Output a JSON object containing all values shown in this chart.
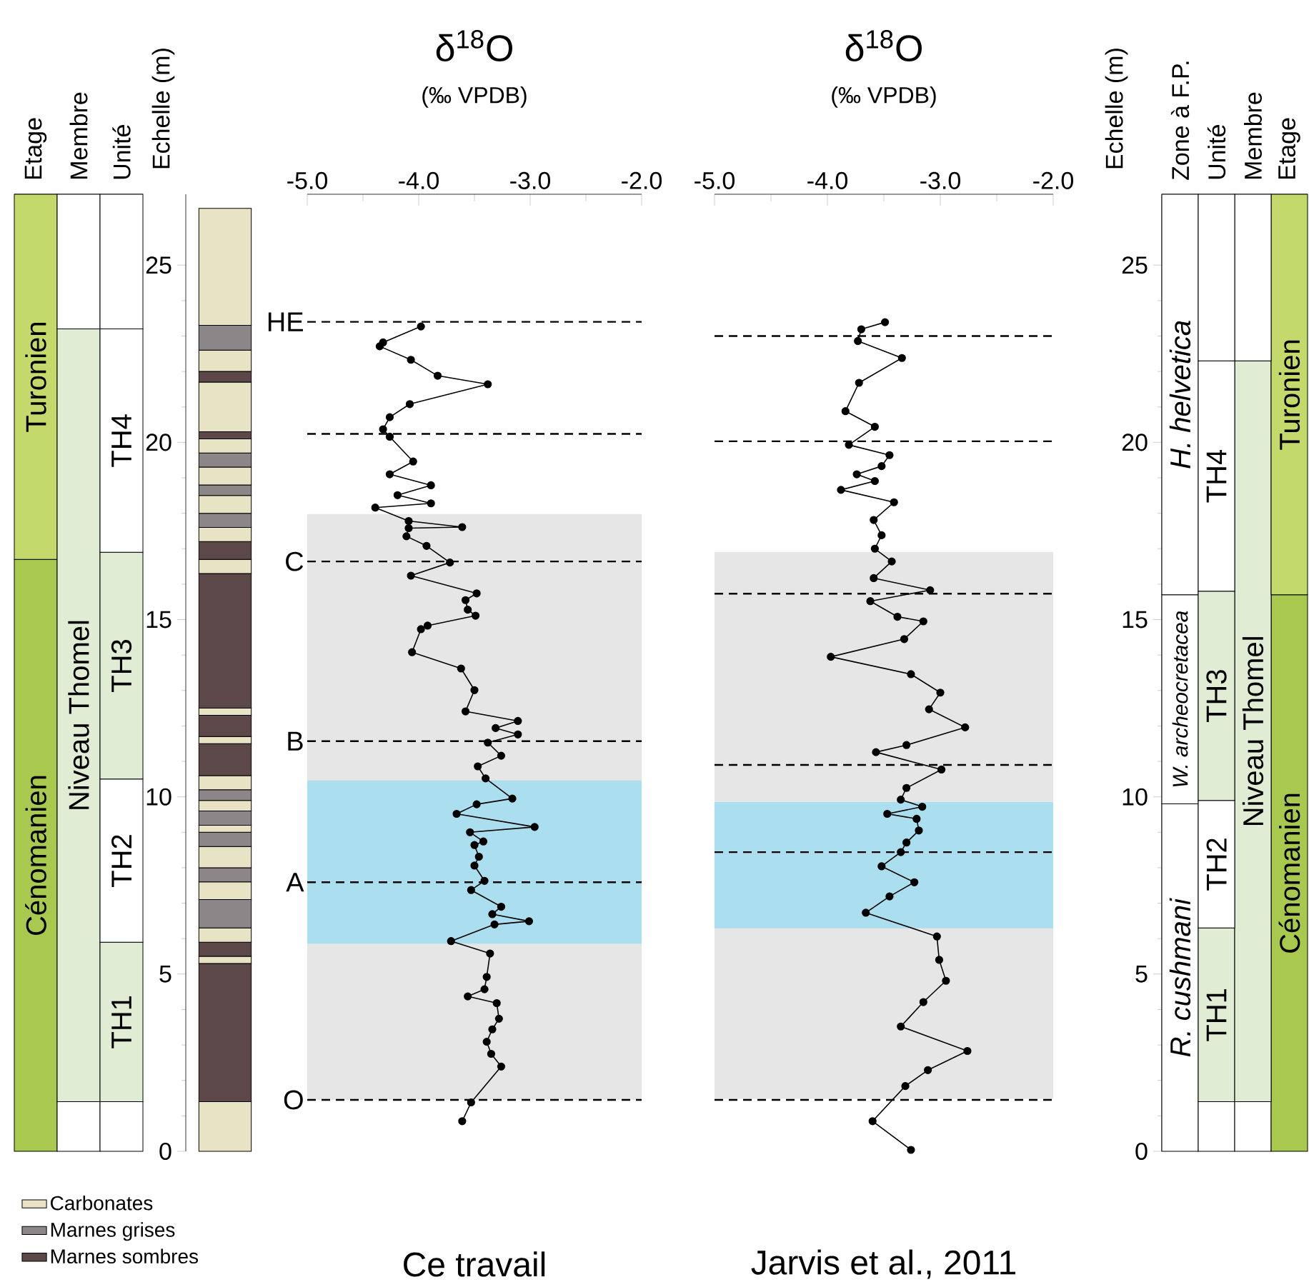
{
  "chart_data": [
    {
      "type": "bar",
      "stacked": true,
      "categories": [
        "Etage",
        "Membre",
        "Unité"
      ],
      "ylim": [
        0,
        27
      ],
      "tick_labels": "x",
      "series": [
        {
          "values": [
            16.7,
            1.4,
            1.4
          ],
          "colors": [
            "#a8c850",
            "#ffffff",
            "#ffffff"
          ],
          "value_labels": [
            "Cénomanien",
            null,
            null
          ]
        },
        {
          "values": [
            10.3,
            21.8,
            4.5
          ],
          "colors": [
            "#c3d96b",
            "#e1ecd5",
            "#e1ecd5"
          ],
          "value_labels": [
            "Turonien",
            "Niveau Thomel",
            "TH1"
          ]
        },
        {
          "values": [
            null,
            3.8,
            4.6
          ],
          "colors": [
            null,
            "#ffffff",
            "#ffffff"
          ],
          "value_labels": [
            null,
            null,
            "TH2"
          ]
        },
        {
          "values": [
            null,
            null,
            6.4
          ],
          "colors": [
            null,
            null,
            "#e1ecd5"
          ],
          "value_labels": [
            null,
            null,
            "TH3"
          ]
        },
        {
          "values": [
            null,
            null,
            6.3
          ],
          "colors": [
            null,
            null,
            "#ffffff"
          ],
          "value_labels": [
            null,
            null,
            "TH4"
          ]
        },
        {
          "values": [
            null,
            null,
            3.8
          ],
          "colors": [
            null,
            null,
            "#ffffff"
          ],
          "value_labels": [
            null,
            null,
            null
          ]
        }
      ]
    },
    {
      "type": "bar",
      "stacked": true,
      "categories": [
        null
      ],
      "ylim": [
        0,
        27
      ],
      "yticks": [
        0,
        5,
        10,
        15,
        20,
        25
      ],
      "ylabel": "Echelle (m)",
      "tick_labels": "y",
      "legend": "bottom left",
      "series": [
        {
          "name": "Carbonates",
          "color": "#e9e3c6",
          "values": [
            1.4
          ]
        },
        {
          "color": "#5c4749",
          "values": [
            3.9
          ]
        },
        {
          "color": "#e9e3c6",
          "values": [
            0.2
          ]
        },
        {
          "color": "#5c4749",
          "values": [
            0.4
          ]
        },
        {
          "color": "#e9e3c6",
          "values": [
            0.4
          ]
        },
        {
          "name": "Marnes grises",
          "color": "#8b8688",
          "values": [
            0.8
          ]
        },
        {
          "color": "#e9e3c6",
          "values": [
            0.5
          ]
        },
        {
          "color": "#8b8688",
          "values": [
            0.4
          ]
        },
        {
          "color": "#e9e3c6",
          "values": [
            0.6
          ]
        },
        {
          "color": "#8b8688",
          "values": [
            0.4
          ]
        },
        {
          "color": "#e9e3c6",
          "values": [
            0.2
          ]
        },
        {
          "color": "#8b8688",
          "values": [
            0.4
          ]
        },
        {
          "color": "#e9e3c6",
          "values": [
            0.3
          ]
        },
        {
          "color": "#8b8688",
          "values": [
            0.3
          ]
        },
        {
          "color": "#e9e3c6",
          "values": [
            0.4
          ]
        },
        {
          "color": "#5c4749",
          "values": [
            0.9
          ]
        },
        {
          "color": "#e9e3c6",
          "values": [
            0.2
          ]
        },
        {
          "color": "#5c4749",
          "values": [
            0.6
          ]
        },
        {
          "color": "#e9e3c6",
          "values": [
            0.2
          ]
        },
        {
          "name": "Marnes sombres",
          "color": "#5c4749",
          "values": [
            3.8
          ]
        },
        {
          "color": "#e9e3c6",
          "values": [
            0.4
          ]
        },
        {
          "color": "#5c4749",
          "values": [
            0.5
          ]
        },
        {
          "color": "#e9e3c6",
          "values": [
            0.4
          ]
        },
        {
          "color": "#8b8688",
          "values": [
            0.4
          ]
        },
        {
          "color": "#e9e3c6",
          "values": [
            0.5
          ]
        },
        {
          "color": "#8b8688",
          "values": [
            0.3
          ]
        },
        {
          "color": "#e9e3c6",
          "values": [
            0.5
          ]
        },
        {
          "color": "#8b8688",
          "values": [
            0.4
          ]
        },
        {
          "color": "#e9e3c6",
          "values": [
            0.4
          ]
        },
        {
          "color": "#5c4749",
          "values": [
            0.2
          ]
        },
        {
          "color": "#e9e3c6",
          "values": [
            1.4
          ]
        },
        {
          "color": "#5c4749",
          "values": [
            0.3
          ]
        },
        {
          "color": "#e9e3c6",
          "values": [
            0.6
          ]
        },
        {
          "color": "#8b8688",
          "values": [
            0.7
          ]
        },
        {
          "color": "#e9e3c6",
          "values": [
            3.3
          ]
        }
      ]
    },
    {
      "type": "line",
      "title": "δ$^{18}$O",
      "subtitle": "(‰ VPDB)",
      "xlim": [
        -5,
        -2
      ],
      "xticks": [
        {
          "value": -5,
          "label": "-5.0"
        },
        {
          "value": -4,
          "label": "-4.0"
        },
        {
          "value": -3,
          "label": "-3.0"
        },
        {
          "value": -2,
          "label": "-2.0"
        }
      ],
      "ylim": [
        0,
        27
      ],
      "tick_labels": "x",
      "marker": "circle",
      "series": [
        {
          "color": "#000000",
          "x": [
            -3.98,
            -4.32,
            -4.35,
            -4.07,
            -3.83,
            -3.38,
            -4.08,
            -4.26,
            -4.32,
            -4.26,
            -4.05,
            -4.26,
            -3.89,
            -4.19,
            -3.89,
            -4.39,
            -4.09,
            -3.61,
            -4.09,
            -4.11,
            -3.93,
            -3.72,
            -4.07,
            -3.48,
            -3.58,
            -3.56,
            -3.49,
            -3.92,
            -3.98,
            -4.06,
            -3.62,
            -3.5,
            -3.58,
            -3.11,
            -3.31,
            -3.11,
            -3.38,
            -3.26,
            -3.47,
            -3.4,
            -3.16,
            -3.48,
            -3.66,
            -2.96,
            -3.54,
            -3.42,
            -3.5,
            -3.46,
            -3.5,
            -3.41,
            -3.53,
            -3.26,
            -3.34,
            -3.01,
            -3.32,
            -3.71,
            -3.36,
            -3.39,
            -3.41,
            -3.56,
            -3.3,
            -3.28,
            -3.34,
            -3.39,
            -3.35,
            -3.26,
            -3.53,
            -3.61
          ],
          "values": [
            23.27,
            22.82,
            22.71,
            22.33,
            21.88,
            21.64,
            21.08,
            20.71,
            20.37,
            20.16,
            19.46,
            19.1,
            18.79,
            18.51,
            18.28,
            18.16,
            17.78,
            17.61,
            17.58,
            17.35,
            17.08,
            16.61,
            16.24,
            15.74,
            15.55,
            15.28,
            15.11,
            14.83,
            14.73,
            14.08,
            13.62,
            13.01,
            12.41,
            12.14,
            11.94,
            11.76,
            11.53,
            11.16,
            10.86,
            10.52,
            9.95,
            9.79,
            9.52,
            9.15,
            9.0,
            8.74,
            8.64,
            8.31,
            8.06,
            7.63,
            7.37,
            6.9,
            6.69,
            6.49,
            6.4,
            5.93,
            5.58,
            4.92,
            4.57,
            4.37,
            4.18,
            3.74,
            3.44,
            3.09,
            2.75,
            2.39,
            1.38,
            0.85
          ]
        }
      ],
      "bands": [
        {
          "axis": "y",
          "from": 1.45,
          "to": 17.98,
          "color": "#e6e6e6"
        },
        {
          "axis": "y",
          "from": 5.86,
          "to": 10.46,
          "color": "#abdeee"
        }
      ],
      "ref_lines": [
        {
          "axis": "y",
          "value": 23.4,
          "label": "HE",
          "line_style": "dashed",
          "color": "#000000"
        },
        {
          "axis": "y",
          "value": 20.24,
          "line_style": "dashed",
          "color": "#000000"
        },
        {
          "axis": "y",
          "value": 16.64,
          "label": "C",
          "line_style": "dashed",
          "color": "#000000"
        },
        {
          "axis": "y",
          "value": 11.57,
          "label": "B",
          "line_style": "dashed",
          "color": "#000000"
        },
        {
          "axis": "y",
          "value": 7.59,
          "label": "A",
          "line_style": "dashed",
          "color": "#000000"
        },
        {
          "axis": "y",
          "value": 1.45,
          "label": "O",
          "line_style": "dashed",
          "color": "#000000"
        }
      ],
      "annotations": [
        "Ce travail"
      ]
    },
    {
      "type": "line",
      "title": "δ$^{18}$O",
      "subtitle": "(‰ VPDB)",
      "xlim": [
        -5,
        -2
      ],
      "xticks": [
        {
          "value": -5,
          "label": "-5.0"
        },
        {
          "value": -4,
          "label": "-4.0"
        },
        {
          "value": -3,
          "label": "-3.0"
        },
        {
          "value": -2,
          "label": "-2.0"
        }
      ],
      "ylim": [
        0,
        27
      ],
      "tick_labels": "x",
      "marker": "circle",
      "series": [
        {
          "color": "#000000",
          "x": [
            -3.49,
            -3.7,
            -3.73,
            -3.34,
            -3.72,
            -3.84,
            -3.58,
            -3.81,
            -3.45,
            -3.52,
            -3.74,
            -3.58,
            -3.88,
            -3.41,
            -3.59,
            -3.52,
            -3.58,
            -3.43,
            -3.59,
            -3.09,
            -3.62,
            -3.38,
            -3.15,
            -3.32,
            -3.97,
            -3.26,
            -3.0,
            -3.1,
            -2.78,
            -3.3,
            -3.57,
            -2.99,
            -3.3,
            -3.35,
            -3.16,
            -3.47,
            -3.21,
            -3.19,
            -3.3,
            -3.35,
            -3.52,
            -3.23,
            -3.45,
            -3.66,
            -3.03,
            -3.01,
            -2.95,
            -3.15,
            -3.35,
            -2.76,
            -3.11,
            -3.31,
            -3.6,
            -3.26
          ],
          "values": [
            23.39,
            23.19,
            22.86,
            22.38,
            21.68,
            20.88,
            20.44,
            19.93,
            19.64,
            19.33,
            19.1,
            18.91,
            18.66,
            18.31,
            17.81,
            17.38,
            17.0,
            16.64,
            16.17,
            15.83,
            15.52,
            15.08,
            14.95,
            14.45,
            13.95,
            13.46,
            12.94,
            12.47,
            11.96,
            11.46,
            11.26,
            10.77,
            10.25,
            9.92,
            9.72,
            9.52,
            9.38,
            9.05,
            8.71,
            8.44,
            8.04,
            7.59,
            7.19,
            6.73,
            6.06,
            5.4,
            4.81,
            4.21,
            3.52,
            2.83,
            2.29,
            1.84,
            0.85,
            0.04
          ]
        }
      ],
      "bands": [
        {
          "axis": "y",
          "from": 1.48,
          "to": 16.91,
          "color": "#e6e6e6"
        },
        {
          "axis": "y",
          "from": 6.29,
          "to": 9.85,
          "color": "#abdeee"
        }
      ],
      "ref_lines": [
        {
          "axis": "y",
          "value": 23.0,
          "line_style": "dashed",
          "color": "#000000"
        },
        {
          "axis": "y",
          "value": 20.03,
          "line_style": "dashed",
          "color": "#000000"
        },
        {
          "axis": "y",
          "value": 15.73,
          "line_style": "dashed",
          "color": "#000000"
        },
        {
          "axis": "y",
          "value": 10.9,
          "line_style": "dashed",
          "color": "#000000"
        },
        {
          "axis": "y",
          "value": 8.44,
          "line_style": "dashed",
          "color": "#000000"
        },
        {
          "axis": "y",
          "value": 1.45,
          "line_style": "dashed",
          "color": "#000000"
        }
      ],
      "annotations": [
        "Jarvis et al., 2011"
      ]
    },
    {
      "type": "bar",
      "stacked": true,
      "categories": [
        "Zone à F.P.",
        "Unité",
        "Membre",
        "Etage"
      ],
      "ylim": [
        0,
        27
      ],
      "yticks": [
        0,
        5,
        10,
        15,
        20,
        25
      ],
      "ylabel": "Echelle (m)",
      "series": [
        {
          "values": [
            9.8,
            1.4,
            1.4,
            15.7
          ],
          "colors": [
            "#ffffff",
            "#ffffff",
            "#ffffff",
            "#a8c850"
          ],
          "value_labels": [
            "*R. cushmani*",
            null,
            null,
            "Cénomanien"
          ]
        },
        {
          "values": [
            5.9,
            4.9,
            20.9,
            11.3
          ],
          "colors": [
            "#ffffff",
            "#e1ecd5",
            "#e1ecd5",
            "#c3d96b"
          ],
          "value_labels": [
            "*W. archeocretacea*",
            "TH1",
            "Niveau Thomel",
            "Turonien"
          ]
        },
        {
          "values": [
            11.3,
            3.6,
            4.7,
            null
          ],
          "colors": [
            "#ffffff",
            "#ffffff",
            "#ffffff",
            null
          ],
          "value_labels": [
            "*H. helvetica*",
            "TH2",
            null,
            null
          ]
        },
        {
          "values": [
            null,
            5.9,
            null,
            null
          ],
          "colors": [
            null,
            "#e1ecd5",
            null,
            null
          ],
          "value_labels": [
            null,
            "TH3",
            null,
            null
          ]
        },
        {
          "values": [
            null,
            6.5,
            null,
            null
          ],
          "colors": [
            null,
            "#ffffff",
            null,
            null
          ],
          "value_labels": [
            null,
            "TH4",
            null,
            null
          ]
        },
        {
          "values": [
            null,
            4.7,
            null,
            null
          ],
          "colors": [
            null,
            "#ffffff",
            null,
            null
          ],
          "value_labels": [
            null,
            null,
            null,
            null
          ]
        }
      ]
    }
  ]
}
